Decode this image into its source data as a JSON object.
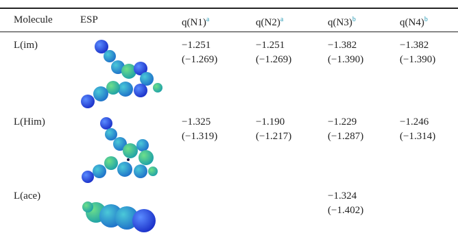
{
  "table": {
    "header": [
      {
        "text": "Molecule"
      },
      {
        "text": "ESP"
      },
      {
        "text": "q(N1)",
        "note": "a"
      },
      {
        "text": "q(N2)",
        "note": "a"
      },
      {
        "text": "q(N3)",
        "note": "b"
      },
      {
        "text": "q(N4)",
        "note": "b"
      }
    ],
    "rows": [
      {
        "molecule": "L(im)",
        "cells": [
          {
            "value": "−1.251",
            "alt": "(−1.269)"
          },
          {
            "value": "−1.251",
            "alt": "(−1.269)"
          },
          {
            "value": "−1.382",
            "alt": "(−1.390)"
          },
          {
            "value": "−1.382",
            "alt": "(−1.390)"
          }
        ]
      },
      {
        "molecule": "L(Him)",
        "cells": [
          {
            "value": "−1.325",
            "alt": "(−1.319)"
          },
          {
            "value": "−1.190",
            "alt": "(−1.217)"
          },
          {
            "value": "−1.229",
            "alt": "(−1.287)"
          },
          {
            "value": "−1.246",
            "alt": "(−1.314)"
          }
        ]
      },
      {
        "molecule": "L(ace)",
        "cells": [
          null,
          null,
          {
            "value": "−1.324",
            "alt": "(−1.402)"
          },
          null
        ]
      }
    ]
  }
}
